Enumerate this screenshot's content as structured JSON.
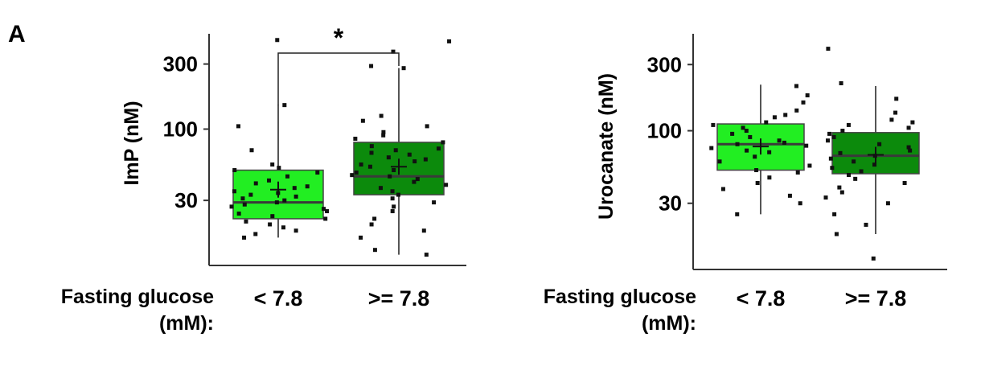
{
  "panel_label": "A",
  "colors": {
    "low_group": "#22ee22",
    "high_group": "#0c8a0c",
    "point": "#111111",
    "axis": "#333333",
    "median": "#3a3a3a"
  },
  "x_axis_title_line1": "Fasting glucose",
  "x_axis_title_line2": "(mM):",
  "chart_data": [
    {
      "type": "box",
      "ylabel": "ImP (nM)",
      "yscale": "log",
      "ylim": [
        10,
        500
      ],
      "yticks": [
        30,
        100,
        300
      ],
      "ytick_labels": [
        "30",
        "100",
        "300"
      ],
      "categories": [
        "< 7.8",
        ">= 7.8"
      ],
      "significance": {
        "between": [
          0,
          1
        ],
        "label": "*"
      },
      "groups": [
        {
          "name": "< 7.8",
          "color_key": "low_group",
          "min": 16,
          "q1": 22,
          "median": 29,
          "q3": 50,
          "max": 150,
          "mean": 36,
          "points": [
            450,
            150,
            105,
            70,
            55,
            52,
            50,
            48,
            45,
            42,
            40,
            38,
            37,
            35,
            34,
            33,
            32,
            31,
            30,
            29,
            28,
            27,
            26,
            25,
            24,
            23,
            22,
            21,
            20,
            19,
            18,
            17,
            16
          ]
        },
        {
          "name": ">= 7.8",
          "color_key": "high_group",
          "min": 12,
          "q1": 33,
          "median": 45,
          "q3": 80,
          "max": 280,
          "mean": 53,
          "points": [
            440,
            370,
            290,
            280,
            125,
            115,
            105,
            95,
            90,
            85,
            80,
            75,
            72,
            70,
            67,
            65,
            62,
            60,
            58,
            55,
            53,
            50,
            48,
            46,
            45,
            43,
            41,
            39,
            37,
            35,
            33,
            31,
            29,
            27,
            25,
            22,
            20,
            18,
            16,
            13,
            12
          ]
        }
      ]
    },
    {
      "type": "box",
      "ylabel": "Urocanate (nM)",
      "yscale": "log",
      "ylim": [
        10,
        500
      ],
      "yticks": [
        30,
        100,
        300
      ],
      "ytick_labels": [
        "30",
        "100",
        "300"
      ],
      "categories": [
        "< 7.8",
        ">= 7.8"
      ],
      "groups": [
        {
          "name": "< 7.8",
          "color_key": "low_group",
          "min": 25,
          "q1": 52,
          "median": 80,
          "q3": 112,
          "max": 215,
          "mean": 77,
          "points": [
            210,
            180,
            160,
            140,
            130,
            125,
            115,
            110,
            105,
            100,
            95,
            90,
            85,
            82,
            80,
            78,
            75,
            72,
            70,
            65,
            60,
            56,
            52,
            50,
            46,
            42,
            38,
            34,
            30,
            25
          ]
        },
        {
          "name": ">= 7.8",
          "color_key": "high_group",
          "min": 18,
          "q1": 49,
          "median": 66,
          "q3": 97,
          "max": 210,
          "mean": 67,
          "points": [
            390,
            220,
            170,
            135,
            120,
            115,
            110,
            105,
            100,
            95,
            90,
            85,
            80,
            76,
            72,
            69,
            66,
            63,
            60,
            57,
            54,
            51,
            48,
            45,
            42,
            39,
            36,
            33,
            30,
            25,
            21,
            18,
            12
          ]
        }
      ]
    }
  ]
}
